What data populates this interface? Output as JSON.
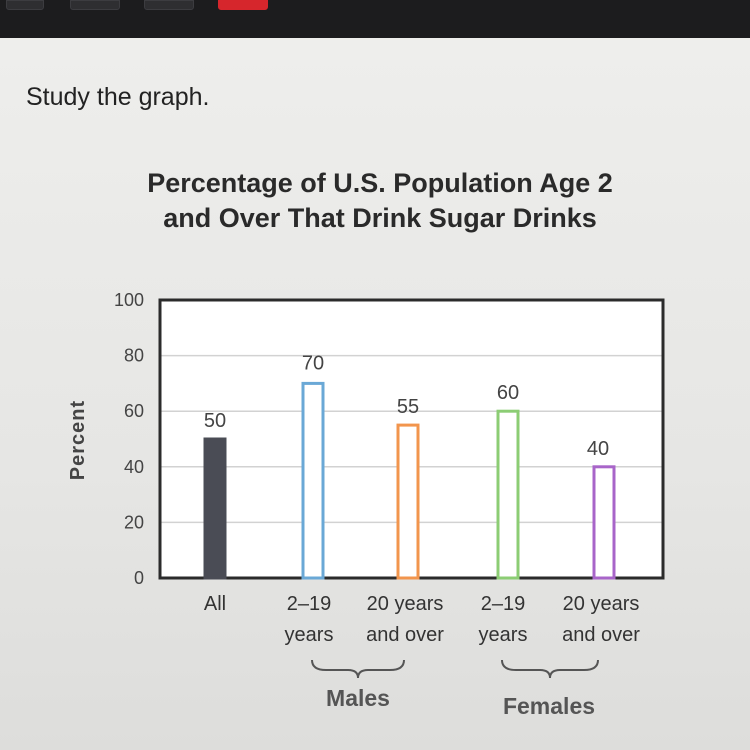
{
  "prompt": "Study the graph.",
  "colors": {
    "all": "#4a4c55",
    "males_2_19": "#6aa8d6",
    "males_20_over": "#f2954d",
    "females_2_19": "#8ccd74",
    "females_20_over": "#a865c9"
  },
  "chart_data": {
    "type": "bar",
    "title_lines": [
      "Percentage of U.S. Population Age 2",
      "and Over That Drink Sugar Drinks"
    ],
    "ylabel": "Percent",
    "ylim": [
      0,
      100
    ],
    "yticks": [
      "0",
      "20",
      "40",
      "60",
      "80",
      "100"
    ],
    "grid": true,
    "categories": [
      {
        "line1": "All",
        "line2": ""
      },
      {
        "line1": "2–19",
        "line2": "years"
      },
      {
        "line1": "20 years",
        "line2": "and over"
      },
      {
        "line1": "2–19",
        "line2": "years"
      },
      {
        "line1": "20 years",
        "line2": "and over"
      }
    ],
    "values": [
      50,
      70,
      55,
      60,
      40
    ],
    "value_labels": [
      "50",
      "70",
      "55",
      "60",
      "40"
    ],
    "groups": [
      {
        "label": "Males",
        "categories": [
          1,
          2
        ]
      },
      {
        "label": "Females",
        "categories": [
          3,
          4
        ]
      }
    ]
  }
}
